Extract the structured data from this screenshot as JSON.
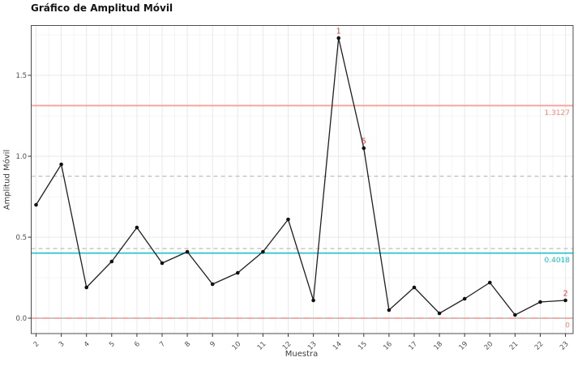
{
  "title": "Gráfico de Amplitud Móvil",
  "axes": {
    "x_label": "Muestra",
    "y_label": "Amplitud Móvil",
    "x_ticks": [
      "2",
      "3",
      "4",
      "5",
      "6",
      "7",
      "8",
      "9",
      "10",
      "11",
      "12",
      "13",
      "14",
      "15",
      "16",
      "17",
      "18",
      "19",
      "20",
      "21",
      "22",
      "23"
    ],
    "y_ticks": [
      "0.0",
      "0.5",
      "1.0",
      "1.5"
    ]
  },
  "chart_data": {
    "type": "line",
    "title": "Gráfico de Amplitud Móvil",
    "xlabel": "Muestra",
    "ylabel": "Amplitud Móvil",
    "x": [
      2,
      3,
      4,
      5,
      6,
      7,
      8,
      9,
      10,
      11,
      12,
      13,
      14,
      15,
      16,
      17,
      18,
      19,
      20,
      21,
      22,
      23
    ],
    "values": [
      0.7,
      0.95,
      0.19,
      0.35,
      0.56,
      0.34,
      0.41,
      0.21,
      0.28,
      0.41,
      0.61,
      0.11,
      1.73,
      1.05,
      0.05,
      0.19,
      0.03,
      0.12,
      0.22,
      0.02,
      0.1,
      0.11
    ],
    "ylim": [
      -0.1,
      1.81
    ],
    "y_tick_values": [
      0.0,
      0.5,
      1.0,
      1.5
    ],
    "grid": true,
    "legend": false,
    "control_lines": [
      {
        "name": "UCL",
        "value": 1.3127,
        "label": "1.3127",
        "line_color": "#f5a29b",
        "text_color": "#ef887d",
        "style": "solid"
      },
      {
        "name": "CL",
        "value": 0.4018,
        "label": "0.4018",
        "line_color": "#2ac4cc",
        "text_color": "#1fb8c1",
        "style": "solid"
      },
      {
        "name": "LCL",
        "value": 0,
        "label": "0",
        "line_color": "#f5a29b",
        "text_color": "#ef887d",
        "style": "dashed"
      }
    ],
    "dashed_reference_values": [
      0.877,
      0.43
    ],
    "out_of_control_labels": [
      {
        "x": 14,
        "label": "1"
      },
      {
        "x": 15,
        "label": "5"
      },
      {
        "x": 23,
        "label": "2"
      }
    ],
    "colors": {
      "series": "#1f1f1f",
      "point": "#111111",
      "annotation": "#e23b32",
      "grid_major": "#e8e8e8",
      "grid_minor": "#f4f4f4",
      "panel_border": "#4d4d4d",
      "tick_text": "#4d4d4d",
      "lcl_underlay": "#a8a8a8",
      "dashed_reference": "#bdbdbd"
    }
  }
}
